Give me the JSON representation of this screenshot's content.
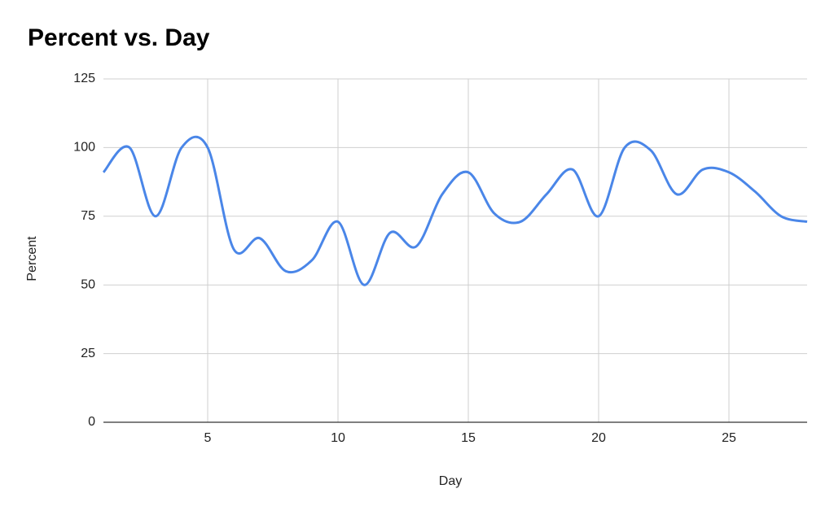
{
  "chart_data": {
    "type": "line",
    "title": "Percent vs. Day",
    "x_label": "Day",
    "y_label": "Percent",
    "x": [
      1,
      2,
      3,
      4,
      5,
      6,
      7,
      8,
      9,
      10,
      11,
      12,
      13,
      14,
      15,
      16,
      17,
      18,
      19,
      20,
      21,
      22,
      23,
      24,
      25,
      26,
      27,
      28
    ],
    "series": [
      {
        "name": "Percent",
        "color": "#4a86e8",
        "values": [
          91,
          100,
          75,
          100,
          100,
          63,
          67,
          55,
          59,
          73,
          50,
          69,
          64,
          83,
          91,
          76,
          73,
          83,
          92,
          75,
          100,
          99,
          83,
          92,
          91,
          84,
          75,
          73
        ]
      }
    ],
    "xlim": [
      1,
      28
    ],
    "xticks": [
      5,
      10,
      15,
      20,
      25
    ],
    "ylim": [
      0,
      125
    ],
    "yticks": [
      0,
      25,
      50,
      75,
      100,
      125
    ],
    "grid": true
  }
}
